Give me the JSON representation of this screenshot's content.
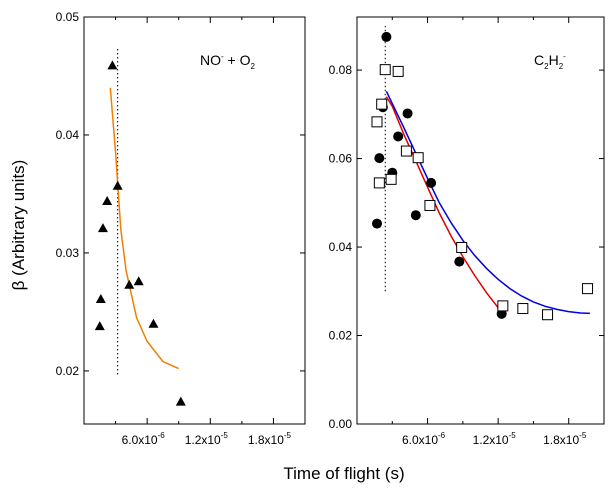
{
  "xlabel": "Time of flight (s)",
  "ylabel": "β (Arbitrary units)",
  "chart_data": [
    {
      "type": "scatter",
      "panel": "left",
      "annotation": {
        "main": "NO",
        "sup": "-",
        "tail": " + O",
        "sub": "2"
      },
      "xlim": [
        0,
        2.1e-05
      ],
      "ylim": [
        0.0155,
        0.05
      ],
      "xticks": [
        {
          "value": 6e-06,
          "label": "6.0x10",
          "exp": "-6"
        },
        {
          "value": 1.2e-05,
          "label": "1.2x10",
          "exp": "-5"
        },
        {
          "value": 1.8e-05,
          "label": "1.8x10",
          "exp": "-5"
        }
      ],
      "yticks": [
        {
          "value": 0.02,
          "label": "0.02"
        },
        {
          "value": 0.03,
          "label": "0.03"
        },
        {
          "value": 0.04,
          "label": "0.04"
        },
        {
          "value": 0.05,
          "label": "0.05"
        }
      ],
      "series": [
        {
          "marker": "triangle",
          "color": "#000000",
          "points": [
            [
              1.5e-06,
              0.0238
            ],
            [
              1.6e-06,
              0.0261
            ],
            [
              1.8e-06,
              0.0321
            ],
            [
              2.2e-06,
              0.0344
            ],
            [
              2.7e-06,
              0.0459
            ],
            [
              3.2e-06,
              0.0357
            ],
            [
              4.3e-06,
              0.0273
            ],
            [
              5.2e-06,
              0.0276
            ],
            [
              6.6e-06,
              0.024
            ],
            [
              9.2e-06,
              0.0174
            ]
          ]
        }
      ],
      "fits": [
        {
          "color": "#f07f00",
          "points": [
            [
              2.5e-06,
              0.044
            ],
            [
              3e-06,
              0.0385
            ],
            [
              3.5e-06,
              0.032
            ],
            [
              4e-06,
              0.0285
            ],
            [
              5e-06,
              0.0245
            ],
            [
              6e-06,
              0.0225
            ],
            [
              7.5e-06,
              0.0208
            ],
            [
              9e-06,
              0.0202
            ]
          ]
        }
      ],
      "vline": {
        "x": 3.2e-06,
        "y_range": [
          0.0197,
          0.0473
        ]
      }
    },
    {
      "type": "scatter",
      "panel": "right",
      "annotation": {
        "main": "C",
        "sub1": "2",
        "mid": "H",
        "sub2": "2",
        "sup": "-"
      },
      "xlim": [
        0,
        2.1e-05
      ],
      "ylim": [
        0,
        0.092
      ],
      "xticks": [
        {
          "value": 6e-06,
          "label": "6.0x10",
          "exp": "-6"
        },
        {
          "value": 1.2e-05,
          "label": "1.2x10",
          "exp": "-5"
        },
        {
          "value": 1.8e-05,
          "label": "1.8x10",
          "exp": "-5"
        }
      ],
      "yticks": [
        {
          "value": 0,
          "label": "0.00"
        },
        {
          "value": 0.02,
          "label": "0.02"
        },
        {
          "value": 0.04,
          "label": "0.04"
        },
        {
          "value": 0.06,
          "label": "0.06"
        },
        {
          "value": 0.08,
          "label": "0.08"
        }
      ],
      "series": [
        {
          "marker": "filled-circle",
          "color": "#000000",
          "points": [
            [
              1.7e-06,
              0.0453
            ],
            [
              1.9e-06,
              0.0601
            ],
            [
              2.2e-06,
              0.0716
            ],
            [
              2.5e-06,
              0.0875
            ],
            [
              3e-06,
              0.0568
            ],
            [
              3.5e-06,
              0.065
            ],
            [
              4.3e-06,
              0.0702
            ],
            [
              5e-06,
              0.0472
            ],
            [
              6.3e-06,
              0.0545
            ],
            [
              8.7e-06,
              0.0367
            ],
            [
              1.23e-05,
              0.0249
            ]
          ]
        },
        {
          "marker": "open-square",
          "color": "#000000",
          "points": [
            [
              1.7e-06,
              0.0683
            ],
            [
              1.9e-06,
              0.0545
            ],
            [
              2.1e-06,
              0.0723
            ],
            [
              2.4e-06,
              0.0801
            ],
            [
              2.9e-06,
              0.0553
            ],
            [
              3.5e-06,
              0.0797
            ],
            [
              4.2e-06,
              0.0617
            ],
            [
              5.2e-06,
              0.0602
            ],
            [
              6.2e-06,
              0.0494
            ],
            [
              8.9e-06,
              0.0399
            ],
            [
              1.24e-05,
              0.0267
            ],
            [
              1.41e-05,
              0.0261
            ],
            [
              1.62e-05,
              0.0247
            ],
            [
              1.96e-05,
              0.0306
            ]
          ]
        }
      ],
      "fits": [
        {
          "color": "#e00000",
          "points": [
            [
              2.5e-06,
              0.074
            ],
            [
              3e-06,
              0.0718
            ],
            [
              4e-06,
              0.0654
            ],
            [
              5e-06,
              0.0595
            ],
            [
              6e-06,
              0.0535
            ],
            [
              7e-06,
              0.0477
            ],
            [
              8e-06,
              0.0425
            ],
            [
              9e-06,
              0.0378
            ],
            [
              1e-05,
              0.0336
            ],
            [
              1.1e-05,
              0.0297
            ],
            [
              1.2e-05,
              0.0263
            ],
            [
              1.23e-05,
              0.0254
            ]
          ]
        },
        {
          "color": "#0000e0",
          "points": [
            [
              2.5e-06,
              0.0752
            ],
            [
              4e-06,
              0.0669
            ],
            [
              5e-06,
              0.0612
            ],
            [
              6e-06,
              0.0555
            ],
            [
              7e-06,
              0.05
            ],
            [
              8e-06,
              0.0455
            ],
            [
              9e-06,
              0.0415
            ],
            [
              1e-05,
              0.0381
            ],
            [
              1.1e-05,
              0.0352
            ],
            [
              1.2e-05,
              0.0327
            ],
            [
              1.3e-05,
              0.0306
            ],
            [
              1.4e-05,
              0.0289
            ],
            [
              1.5e-05,
              0.0276
            ],
            [
              1.6e-05,
              0.0266
            ],
            [
              1.7e-05,
              0.0259
            ],
            [
              1.8e-05,
              0.0254
            ],
            [
              1.9e-05,
              0.0251
            ],
            [
              1.98e-05,
              0.025
            ]
          ]
        }
      ],
      "vline": {
        "x": 2.4e-06,
        "y_range": [
          0.03,
          0.09
        ]
      }
    }
  ]
}
